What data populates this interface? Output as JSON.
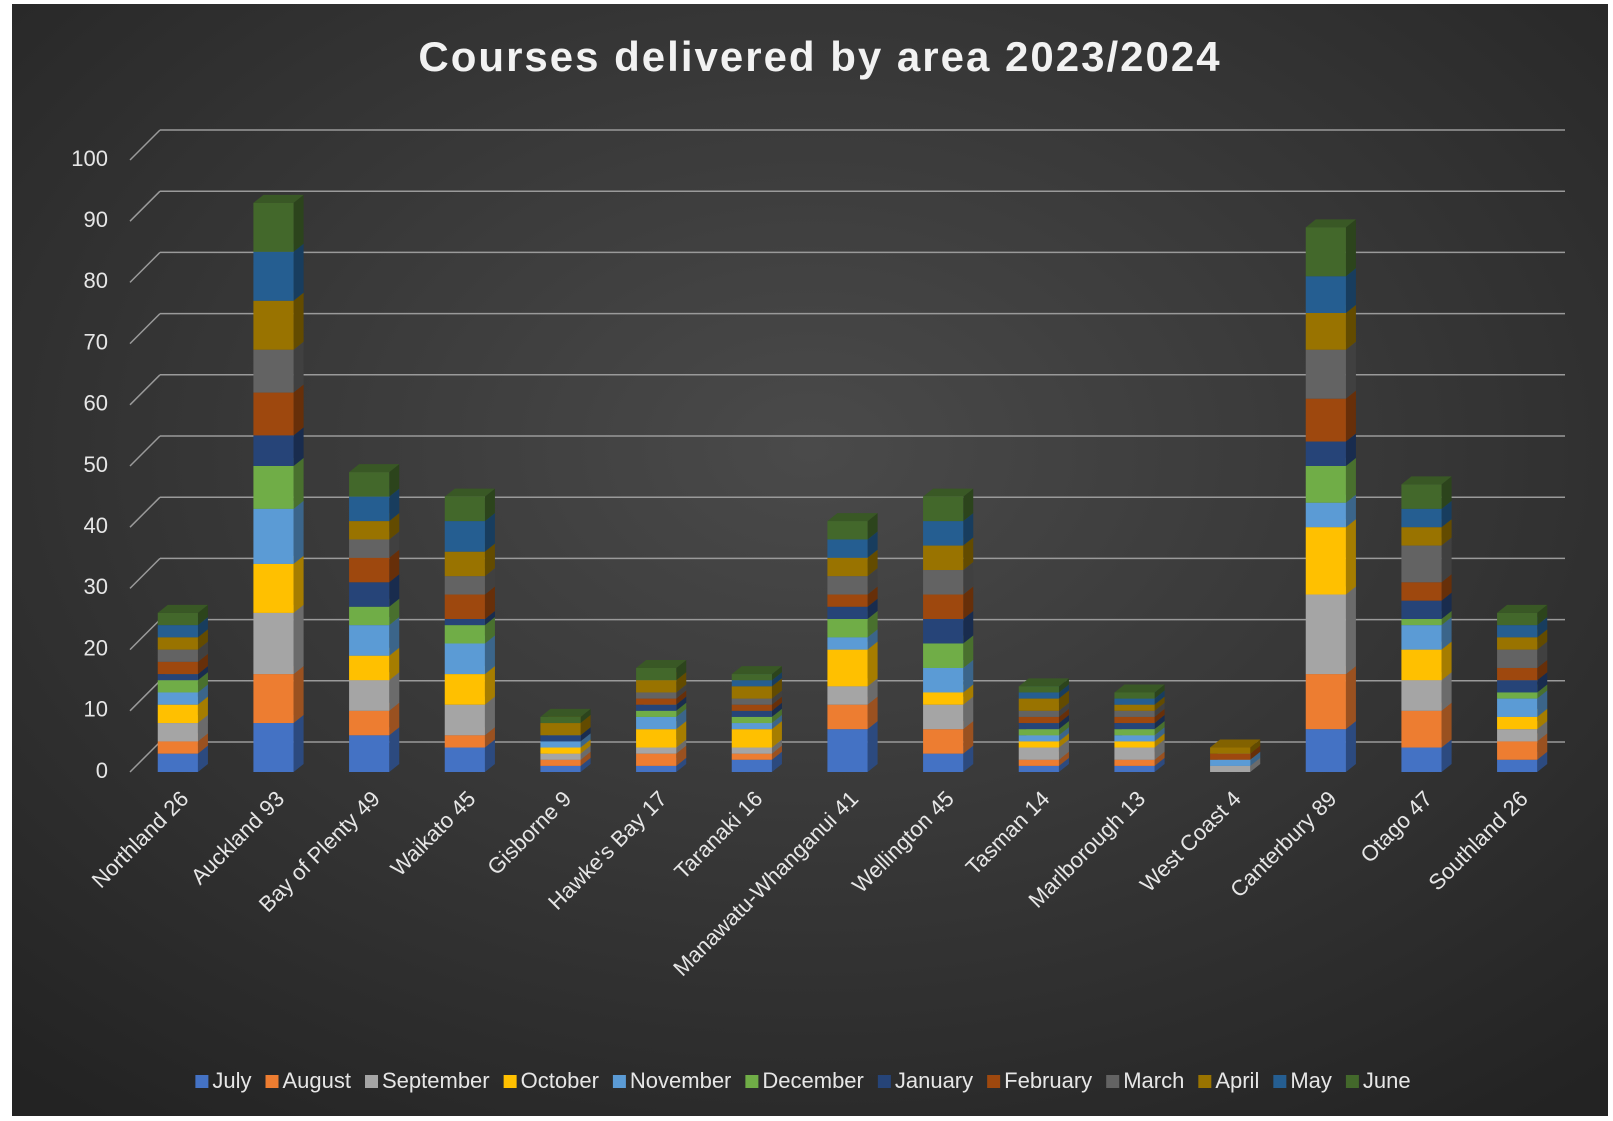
{
  "chart_data": {
    "type": "stacked_bar",
    "title": "Courses delivered by area 2023/2024",
    "categories": [
      "Northland 26",
      "Auckland 93",
      "Bay of Plenty 49",
      "Waikato 45",
      "Gisborne 9",
      "Hawke's Bay 17",
      "Taranaki 16",
      "Manawatu-Whanganui 41",
      "Wellington 45",
      "Tasman 14",
      "Marlborough 13",
      "West Coast 4",
      "Canterbury 89",
      "Otago 47",
      "Southland 26"
    ],
    "series": [
      {
        "name": "July",
        "color": "#4472c4",
        "values": [
          3,
          8,
          6,
          4,
          1,
          1,
          2,
          7,
          3,
          1,
          1,
          0,
          7,
          4,
          2
        ]
      },
      {
        "name": "August",
        "color": "#ed7d31",
        "values": [
          2,
          8,
          4,
          2,
          1,
          2,
          1,
          4,
          4,
          1,
          1,
          0,
          9,
          6,
          3
        ]
      },
      {
        "name": "September",
        "color": "#a5a5a5",
        "values": [
          3,
          10,
          5,
          5,
          1,
          1,
          1,
          3,
          4,
          2,
          2,
          1,
          13,
          5,
          2
        ]
      },
      {
        "name": "October",
        "color": "#ffc000",
        "values": [
          3,
          8,
          4,
          5,
          1,
          3,
          3,
          6,
          2,
          1,
          1,
          0,
          11,
          5,
          2
        ]
      },
      {
        "name": "November",
        "color": "#5b9bd5",
        "values": [
          2,
          9,
          5,
          5,
          1,
          2,
          1,
          2,
          4,
          1,
          1,
          1,
          4,
          4,
          3
        ]
      },
      {
        "name": "December",
        "color": "#70ad47",
        "values": [
          2,
          7,
          3,
          3,
          0,
          1,
          1,
          3,
          4,
          1,
          1,
          0,
          6,
          1,
          1
        ]
      },
      {
        "name": "January",
        "color": "#264478",
        "values": [
          1,
          5,
          4,
          1,
          1,
          1,
          1,
          2,
          4,
          1,
          1,
          0,
          4,
          3,
          2
        ]
      },
      {
        "name": "February",
        "color": "#9e480e",
        "values": [
          2,
          7,
          4,
          4,
          0,
          1,
          1,
          2,
          4,
          1,
          1,
          1,
          7,
          3,
          2
        ]
      },
      {
        "name": "March",
        "color": "#636363",
        "values": [
          2,
          7,
          3,
          3,
          0,
          1,
          1,
          3,
          4,
          1,
          1,
          0,
          8,
          6,
          3
        ]
      },
      {
        "name": "April",
        "color": "#997300",
        "values": [
          2,
          8,
          3,
          4,
          2,
          2,
          2,
          3,
          4,
          2,
          1,
          1,
          6,
          3,
          2
        ]
      },
      {
        "name": "May",
        "color": "#255e91",
        "values": [
          2,
          8,
          4,
          5,
          0,
          0,
          1,
          3,
          4,
          1,
          1,
          0,
          6,
          3,
          2
        ]
      },
      {
        "name": "June",
        "color": "#43682b",
        "values": [
          2,
          8,
          4,
          4,
          1,
          2,
          1,
          3,
          4,
          1,
          1,
          0,
          8,
          4,
          2
        ]
      }
    ],
    "ylim": [
      0,
      100
    ],
    "yticks": [
      0,
      10,
      20,
      30,
      40,
      50,
      60,
      70,
      80,
      90,
      100
    ],
    "grid": true,
    "legend": "bottom"
  }
}
